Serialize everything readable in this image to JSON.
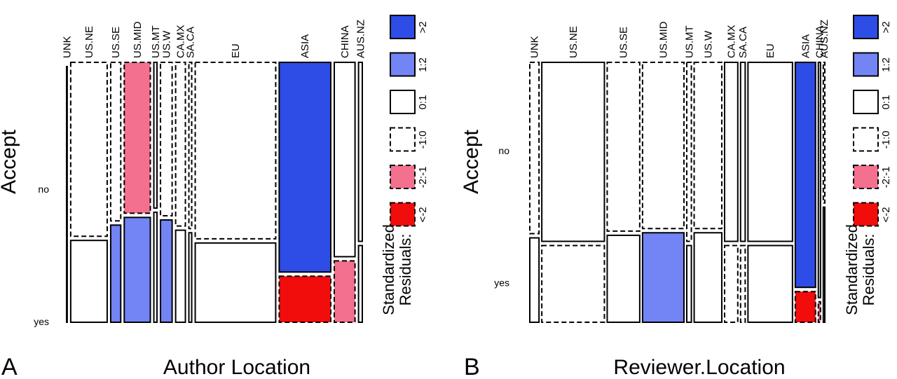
{
  "colors": {
    "gt2": "#2e4de6",
    "1to2": "#7384f5",
    "0to1": "#ffffff",
    "m1to0": "#ffffff",
    "m2tom1": "#f4708f",
    "lt_m2": "#f20d0d",
    "stroke": "#000000"
  },
  "chart_data": [
    {
      "type": "mosaic",
      "panel_label": "A",
      "xlabel": "Author Location",
      "ylabel": "Accept",
      "levels": [
        "no",
        "yes"
      ],
      "categories": [
        "UNK",
        "US.NE",
        "US.SE",
        "US.MID",
        "US.MT",
        "US.W",
        "CA.MX",
        "SA.CA",
        "EU",
        "ASIA",
        "CHINA",
        "AUS.NZ"
      ],
      "column_share_pct": [
        0.2,
        11.6,
        3.2,
        8.3,
        1.0,
        3.7,
        3.1,
        0.9,
        25.6,
        16.4,
        6.6,
        1.2
      ],
      "yes_share_pct": [
        100,
        32,
        38,
        41,
        43,
        40,
        36,
        35,
        31,
        18,
        24,
        30
      ],
      "residual_class": [
        [
          "0:1",
          "0:1"
        ],
        [
          "-1:0",
          "0:1"
        ],
        [
          "-1:0",
          "1:2"
        ],
        [
          "-2:-1",
          "1:2"
        ],
        [
          "0:1",
          "0:1"
        ],
        [
          "-1:0",
          "1:2"
        ],
        [
          "-1:0",
          "0:1"
        ],
        [
          "-1:0",
          "0:1"
        ],
        [
          "-1:0",
          "0:1"
        ],
        [
          ">2",
          "<-2"
        ],
        [
          "0:1",
          "-2:-1"
        ],
        [
          "0:1",
          "0:1"
        ]
      ]
    },
    {
      "type": "mosaic",
      "panel_label": "B",
      "xlabel": "Reviewer.Location",
      "ylabel": "Accept",
      "levels": [
        "no",
        "yes"
      ],
      "categories": [
        "UNK",
        "US.NE",
        "US.SE",
        "US.MID",
        "US.MT",
        "US.W",
        "CA.MX",
        "SA.CA",
        "EU",
        "ASIA",
        "CHINA",
        "AUS.NZ"
      ],
      "column_share_pct": [
        3.0,
        20.4,
        10.6,
        13.5,
        1.5,
        9.0,
        4.3,
        1.5,
        14.5,
        6.6,
        0.7,
        0.5
      ],
      "yes_share_pct": [
        33,
        30,
        34,
        35,
        30,
        35,
        30,
        30,
        30,
        12,
        8,
        45
      ],
      "residual_class": [
        [
          "-1:0",
          "0:1"
        ],
        [
          "0:1",
          "-1:0"
        ],
        [
          "-1:0",
          "0:1"
        ],
        [
          "-1:0",
          "1:2"
        ],
        [
          "-1:0",
          "0:1"
        ],
        [
          "-1:0",
          "0:1"
        ],
        [
          "0:1",
          "-1:0"
        ],
        [
          "0:1",
          "-1:0"
        ],
        [
          "0:1",
          "0:1"
        ],
        [
          ">2",
          "<-2"
        ],
        [
          "0:1",
          "-2:-1"
        ],
        [
          "-1:0",
          "0:1"
        ]
      ]
    }
  ],
  "legend": {
    "title_line1": "Standardized",
    "title_line2": "Residuals:",
    "entries": [
      {
        "label": ">2",
        "key": "gt2",
        "dashed": false
      },
      {
        "label": "1:2",
        "key": "1to2",
        "dashed": false
      },
      {
        "label": "0:1",
        "key": "0to1",
        "dashed": false
      },
      {
        "label": "-1:0",
        "key": "m1to0",
        "dashed": true
      },
      {
        "label": "-2:-1",
        "key": "m2tom1",
        "dashed": true
      },
      {
        "label": "<-2",
        "key": "lt_m2",
        "dashed": true
      }
    ]
  }
}
